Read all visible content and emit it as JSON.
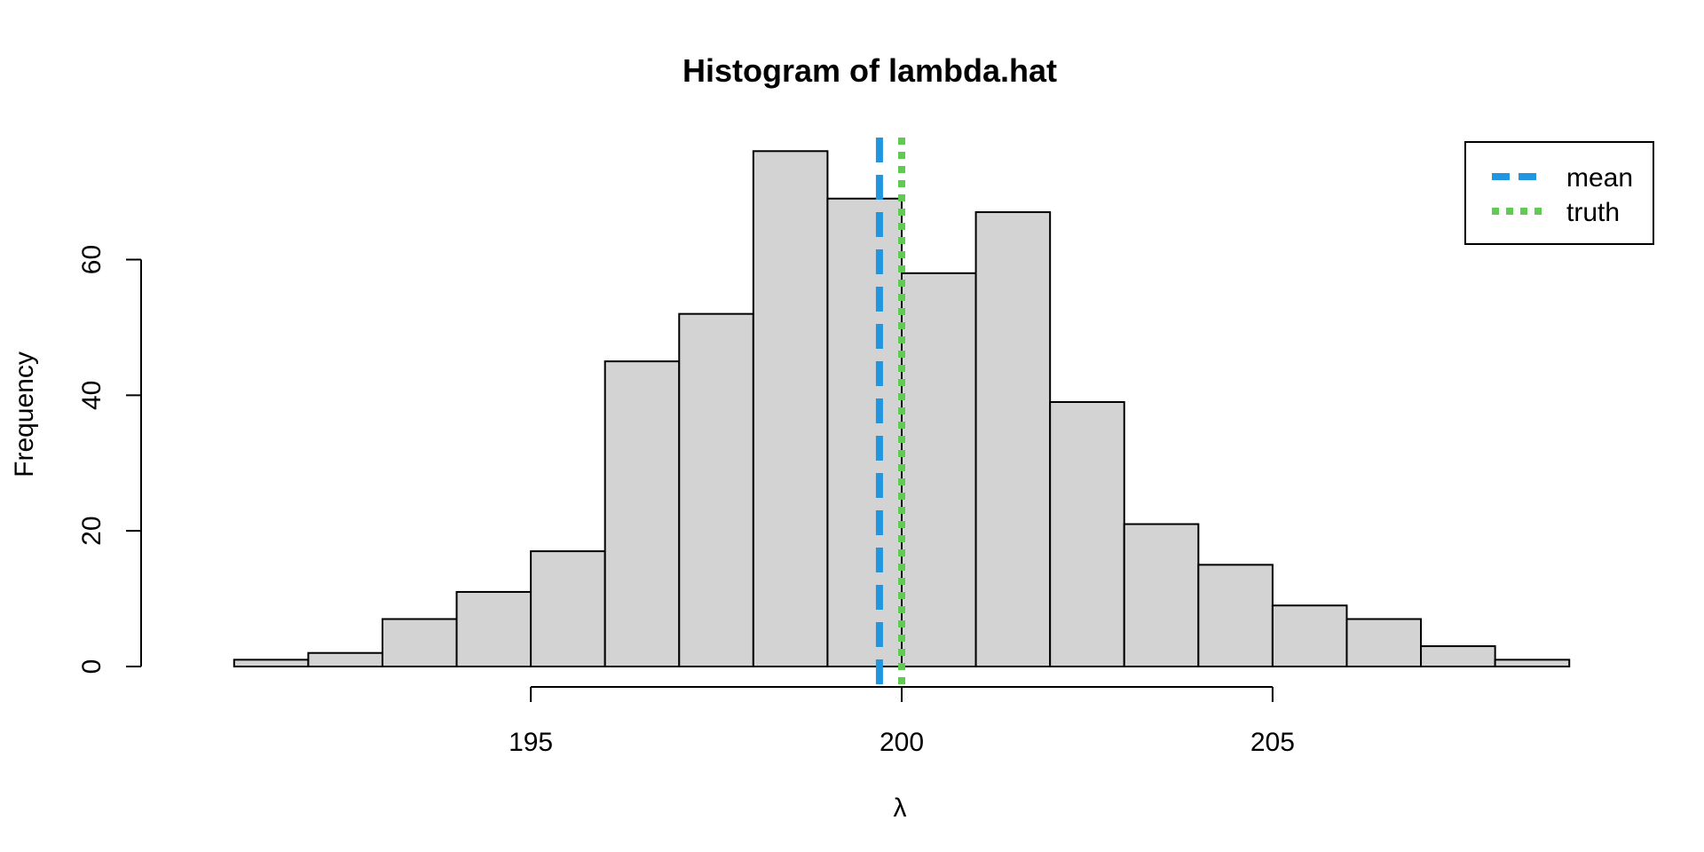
{
  "chart_data": {
    "type": "bar",
    "title": "Histogram of lambda.hat",
    "xlabel": "λ",
    "ylabel": "Frequency",
    "xlim": [
      190.5,
      209.5
    ],
    "ylim": [
      0,
      78
    ],
    "x_ticks": [
      195,
      200,
      205
    ],
    "y_ticks": [
      0,
      20,
      40,
      60
    ],
    "bin_width": 1,
    "bins": [
      {
        "start": 191,
        "end": 192,
        "count": 1
      },
      {
        "start": 192,
        "end": 193,
        "count": 2
      },
      {
        "start": 193,
        "end": 194,
        "count": 7
      },
      {
        "start": 194,
        "end": 195,
        "count": 11
      },
      {
        "start": 195,
        "end": 196,
        "count": 17
      },
      {
        "start": 196,
        "end": 197,
        "count": 45
      },
      {
        "start": 197,
        "end": 198,
        "count": 52
      },
      {
        "start": 198,
        "end": 199,
        "count": 76
      },
      {
        "start": 199,
        "end": 200,
        "count": 69
      },
      {
        "start": 200,
        "end": 201,
        "count": 58
      },
      {
        "start": 201,
        "end": 202,
        "count": 67
      },
      {
        "start": 202,
        "end": 203,
        "count": 39
      },
      {
        "start": 203,
        "end": 204,
        "count": 21
      },
      {
        "start": 204,
        "end": 205,
        "count": 15
      },
      {
        "start": 205,
        "end": 206,
        "count": 9
      },
      {
        "start": 206,
        "end": 207,
        "count": 7
      },
      {
        "start": 207,
        "end": 208,
        "count": 3
      },
      {
        "start": 208,
        "end": 209,
        "count": 1
      }
    ],
    "reference_lines": [
      {
        "name": "mean",
        "x": 199.7,
        "color": "#2196E0",
        "style": "dashed"
      },
      {
        "name": "truth",
        "x": 200,
        "color": "#5FCB50",
        "style": "dotted"
      }
    ],
    "bar_fill": "#D3D3D3",
    "bar_stroke": "#000000",
    "legend": {
      "position": "top-right",
      "entries": [
        "mean",
        "truth"
      ]
    },
    "grid": false
  }
}
